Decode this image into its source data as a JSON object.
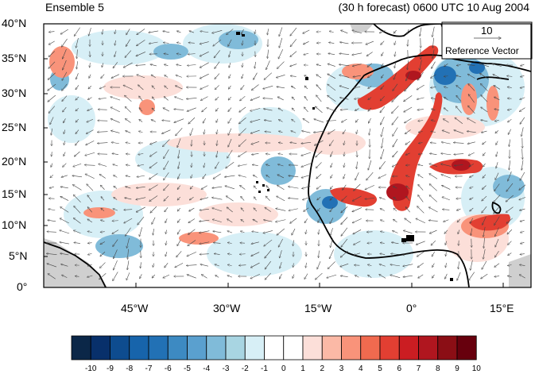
{
  "header": {
    "left_title": "Ensemble 5",
    "right_title": "(30 h forecast) 0600 UTC 10 Aug 2004"
  },
  "axes": {
    "lat_labels": [
      "40°N",
      "35°N",
      "30°N",
      "25°N",
      "20°N",
      "15°N",
      "10°N",
      "5°N",
      "0°"
    ],
    "lon_labels": [
      "45°W",
      "30°W",
      "15°W",
      "0°",
      "15°E"
    ]
  },
  "reference_vector": {
    "magnitude": "10",
    "label": "Reference Vector"
  },
  "colorbar": {
    "labels": [
      "-10",
      "-9",
      "-8",
      "-7",
      "-6",
      "-5",
      "-4",
      "-3",
      "-2",
      "-1",
      "0",
      "1",
      "2",
      "3",
      "4",
      "5",
      "6",
      "7",
      "8",
      "9",
      "10"
    ],
    "colors": [
      "#0b2748",
      "#08306b",
      "#0e4c8f",
      "#1764ab",
      "#2271b5",
      "#3d8ac2",
      "#5aa0cf",
      "#80bbd9",
      "#a8d5e2",
      "#d7eff6",
      "#ffffff",
      "#ffffff",
      "#fcdfd9",
      "#fbb9a6",
      "#f9937a",
      "#f06a4f",
      "#e23f32",
      "#cb1d22",
      "#b0161f",
      "#8b0e15",
      "#67000d"
    ]
  },
  "map_layers": {
    "land_mask_color": "#cfcfcf",
    "coastline_color": "#000000",
    "vector_color": "#444444"
  }
}
